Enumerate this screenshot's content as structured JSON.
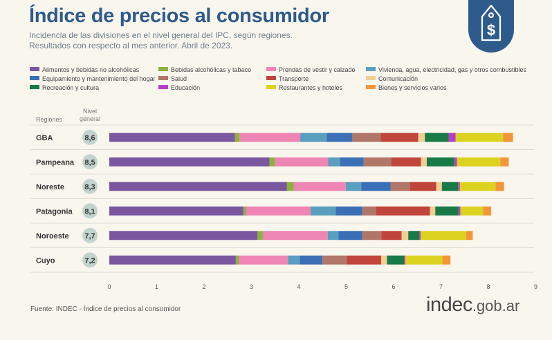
{
  "header": {
    "title": "Índice de precios al consumidor",
    "subtitle_line1": "Incidencia de las divisiones en el nivel general del IPC, según regiones.",
    "subtitle_line2": "Resultados con respecto al mes anterior. Abril de 2023."
  },
  "badge": {
    "icon": "price-tag-dollar-icon",
    "color": "#2f5a8c"
  },
  "footer": {
    "source": "Fuente: INDEC - Índice de precios al consumidor",
    "brand_main": "indec",
    "brand_domain": ".gob.ar"
  },
  "chart_data": {
    "type": "bar",
    "orientation": "horizontal",
    "stacked": true,
    "row_header": "Regiones",
    "level_header_line1": "Nivel",
    "level_header_line2": "general",
    "categories": [
      "GBA",
      "Pampeana",
      "Noreste",
      "Patagonia",
      "Noroeste",
      "Cuyo"
    ],
    "levels": [
      "8,6",
      "8,5",
      "8,3",
      "8,1",
      "7,7",
      "7,2"
    ],
    "xlim": [
      0,
      9
    ],
    "xticks": [
      "0",
      "1",
      "2",
      "3",
      "4",
      "5",
      "6",
      "7",
      "8",
      "9"
    ],
    "grid": false,
    "legend_position": "top",
    "series": [
      {
        "name": "Alimentos y bebidas no alcohólicas",
        "color": "#7b57a0",
        "values": [
          2.65,
          3.38,
          3.75,
          2.83,
          3.13,
          2.67
        ]
      },
      {
        "name": "Bebidas alcohólicas y tabaco",
        "color": "#8db33d",
        "values": [
          0.1,
          0.12,
          0.14,
          0.06,
          0.11,
          0.07
        ]
      },
      {
        "name": "Prendas de vestir y calzado",
        "color": "#ee85b5",
        "values": [
          1.28,
          1.12,
          1.1,
          1.36,
          1.37,
          1.03
        ]
      },
      {
        "name": "Vivienda, agua, electricidad, gas y otros combustibles",
        "color": "#5a9ec0",
        "values": [
          0.56,
          0.25,
          0.33,
          0.53,
          0.23,
          0.25
        ]
      },
      {
        "name": "Equipamiento y mantenimiento del hogar",
        "color": "#3b6fb6",
        "values": [
          0.54,
          0.5,
          0.62,
          0.56,
          0.5,
          0.48
        ]
      },
      {
        "name": "Salud",
        "color": "#b07668",
        "values": [
          0.6,
          0.58,
          0.4,
          0.29,
          0.4,
          0.51
        ]
      },
      {
        "name": "Transporte",
        "color": "#c0453a",
        "values": [
          0.79,
          0.63,
          0.56,
          1.14,
          0.43,
          0.73
        ]
      },
      {
        "name": "Comunicación",
        "color": "#f2cf93",
        "values": [
          0.14,
          0.12,
          0.12,
          0.11,
          0.14,
          0.12
        ]
      },
      {
        "name": "Recreación y cultura",
        "color": "#177a47",
        "values": [
          0.5,
          0.58,
          0.34,
          0.49,
          0.23,
          0.36
        ]
      },
      {
        "name": "Educación",
        "color": "#b73fc7",
        "values": [
          0.15,
          0.06,
          0.04,
          0.04,
          0.03,
          0.03
        ]
      },
      {
        "name": "Restaurantes y hoteles",
        "color": "#dcd321",
        "values": [
          1.0,
          0.91,
          0.75,
          0.48,
          0.96,
          0.78
        ]
      },
      {
        "name": "Bienes y servicios varios",
        "color": "#f39639",
        "values": [
          0.21,
          0.18,
          0.18,
          0.17,
          0.14,
          0.17
        ]
      }
    ]
  }
}
